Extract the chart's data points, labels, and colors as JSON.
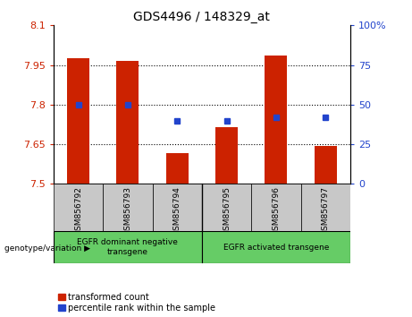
{
  "title": "GDS4496 / 148329_at",
  "samples": [
    "GSM856792",
    "GSM856793",
    "GSM856794",
    "GSM856795",
    "GSM856796",
    "GSM856797"
  ],
  "red_values": [
    7.975,
    7.965,
    7.615,
    7.715,
    7.985,
    7.645
  ],
  "blue_values": [
    50,
    50,
    40,
    40,
    42,
    42
  ],
  "ylim_left": [
    7.5,
    8.1
  ],
  "ylim_right": [
    0,
    100
  ],
  "yticks_left": [
    7.5,
    7.65,
    7.8,
    7.95,
    8.1
  ],
  "yticks_right": [
    0,
    25,
    50,
    75,
    100
  ],
  "ytick_labels_left": [
    "7.5",
    "7.65",
    "7.8",
    "7.95",
    "8.1"
  ],
  "ytick_labels_right": [
    "0",
    "25",
    "50",
    "75",
    "100%"
  ],
  "red_color": "#cc2200",
  "blue_color": "#2244cc",
  "bar_width": 0.45,
  "group1_label": "EGFR dominant negative\ntransgene",
  "group2_label": "EGFR activated transgene",
  "group1_range": [
    0,
    2
  ],
  "group2_range": [
    3,
    5
  ],
  "legend_red": "transformed count",
  "legend_blue": "percentile rank within the sample",
  "genotype_label": "genotype/variation",
  "background_color": "#ffffff",
  "plot_bg": "#ffffff",
  "tick_area_bg": "#c8c8c8",
  "group_bg": "#66cc66"
}
